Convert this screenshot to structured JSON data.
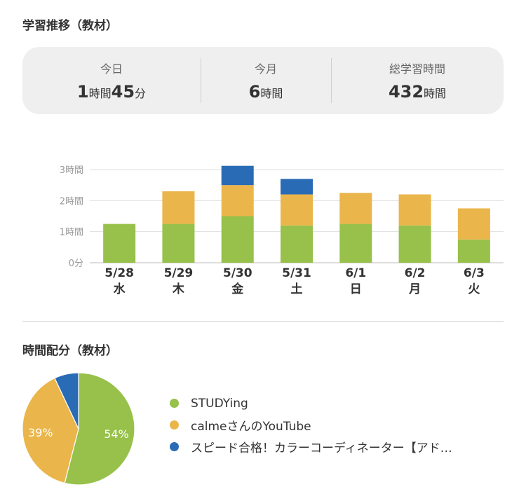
{
  "header": {
    "title": "学習推移（教材）"
  },
  "summary": {
    "today": {
      "label": "今日",
      "h": "1",
      "h_unit": "時間",
      "m": "45",
      "m_unit": "分"
    },
    "month": {
      "label": "今月",
      "h": "6",
      "h_unit": "時間"
    },
    "total": {
      "label": "総学習時間",
      "h": "432",
      "h_unit": "時間"
    }
  },
  "chart_data": [
    {
      "type": "bar",
      "stacked": true,
      "categories": [
        "5/28",
        "5/29",
        "5/30",
        "5/31",
        "6/1",
        "6/2",
        "6/3"
      ],
      "weekdays": [
        "水",
        "木",
        "金",
        "土",
        "日",
        "月",
        "火"
      ],
      "y_ticks": [
        "0分",
        "1時間",
        "2時間",
        "3時間"
      ],
      "ylim": [
        0,
        3
      ],
      "grid": true,
      "series": [
        {
          "color": "#97c14a",
          "values": [
            1.25,
            1.25,
            1.5,
            1.2,
            1.25,
            1.2,
            0.75
          ]
        },
        {
          "color": "#eab54a",
          "values": [
            0,
            1.05,
            1.0,
            1.0,
            1.0,
            1.0,
            1.0
          ]
        },
        {
          "color": "#2a6bb5",
          "values": [
            0,
            0,
            0.62,
            0.5,
            0,
            0,
            0
          ]
        }
      ]
    },
    {
      "type": "pie",
      "title": "時間配分（教材）",
      "slices": [
        {
          "name": "STUDYing",
          "value": 54,
          "label": "54%",
          "color": "#97c14a"
        },
        {
          "name": "calmeさんのYouTube",
          "value": 39,
          "label": "39%",
          "color": "#eab54a"
        },
        {
          "name": "スピード合格！カラーコーディネーター【アド…",
          "value": 7,
          "label": "",
          "color": "#2a6bb5"
        }
      ]
    }
  ]
}
